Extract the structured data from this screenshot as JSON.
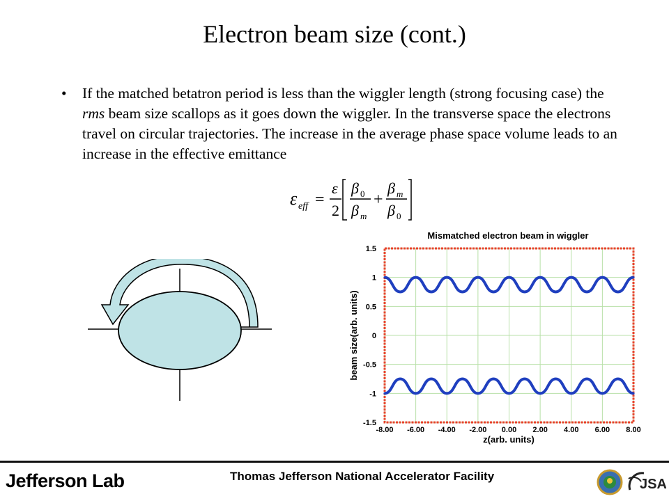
{
  "slide": {
    "title": "Electron beam size (cont.)",
    "bullet_char": "•",
    "bullet_segments": [
      "If the matched betatron period is less than the wiggler length (strong focusing case) the ",
      "rms",
      " beam size scallops as it goes down the wiggler.  In the transverse space the electrons travel on circular trajectories.  The increase in the average phase space volume leads to an increase in the effective emittance"
    ]
  },
  "formula": {
    "lhs_symbol": "ε",
    "lhs_subscript": "eff",
    "equals": "=",
    "coef_numerator": "ε",
    "coef_denominator": "2",
    "term1_numerator": "β",
    "term1_numerator_sub": "0",
    "term1_denominator": "β",
    "term1_denominator_sub": "m",
    "plus": "+",
    "term2_numerator": "β",
    "term2_numerator_sub": "m",
    "term2_denominator": "β",
    "term2_denominator_sub": "0"
  },
  "diagram": {
    "ellipse_color": "#bfe3e6",
    "arrow_color": "#bfe3e6"
  },
  "chart_data": {
    "type": "line",
    "title": "Mismatched electron beam in wiggler",
    "xlabel": "z(arb. units)",
    "ylabel": "beam size(arb. units)",
    "xlim": [
      -8,
      8
    ],
    "ylim": [
      -1.5,
      1.5
    ],
    "x_ticks": [
      "-8.00",
      "-6.00",
      "-4.00",
      "-2.00",
      "0.00",
      "2.00",
      "4.00",
      "6.00",
      "8.00"
    ],
    "y_ticks": [
      "1.5",
      "1",
      "0.5",
      "0",
      "-0.5",
      "-1",
      "-1.5"
    ],
    "grid": true,
    "series_color": "#1f3fbf",
    "frame_color": "#e8432c",
    "grid_color": "#b8e0a8",
    "series": [
      {
        "x": [
          -8.0,
          -7.0,
          -6.0,
          -5.0,
          -4.0,
          -3.0,
          -2.0,
          -1.0,
          0.0,
          1.0,
          2.0,
          3.0,
          4.0,
          5.0,
          6.0,
          7.0,
          8.0
        ],
        "y": [
          1.0,
          0.75,
          1.0,
          0.75,
          1.0,
          0.75,
          1.0,
          0.75,
          1.0,
          0.75,
          1.0,
          0.75,
          1.0,
          0.75,
          1.0,
          0.75,
          1.0
        ]
      },
      {
        "x": [
          -8.0,
          -7.0,
          -6.0,
          -5.0,
          -4.0,
          -3.0,
          -2.0,
          -1.0,
          0.0,
          1.0,
          2.0,
          3.0,
          4.0,
          5.0,
          6.0,
          7.0,
          8.0
        ],
        "y": [
          -1.0,
          -0.75,
          -1.0,
          -0.75,
          -1.0,
          -0.75,
          -1.0,
          -0.75,
          -1.0,
          -0.75,
          -1.0,
          -0.75,
          -1.0,
          -0.75,
          -1.0,
          -0.75,
          -1.0
        ]
      }
    ]
  },
  "footer": {
    "logo_text": "Jefferson Lab",
    "facility_name": "Thomas Jefferson National Accelerator Facility",
    "jsa_text": "JSA"
  }
}
